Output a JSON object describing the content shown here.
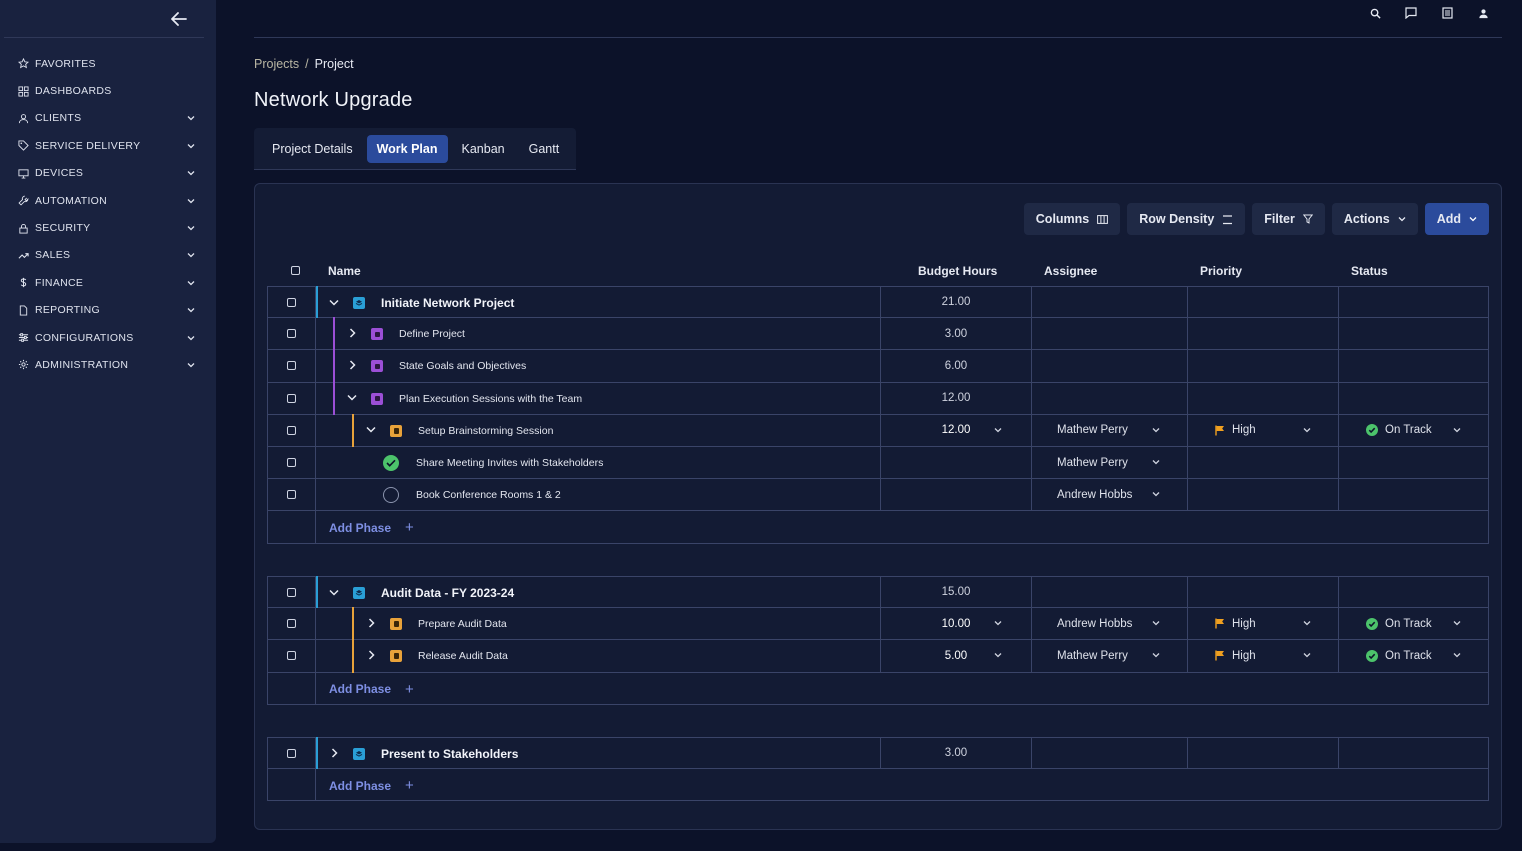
{
  "sidebar": {
    "items": [
      {
        "label": "FAVORITES",
        "icon": "star-icon",
        "chevron": false
      },
      {
        "label": "DASHBOARDS",
        "icon": "dashboard-icon",
        "chevron": false
      },
      {
        "label": "CLIENTS",
        "icon": "user-icon",
        "chevron": true
      },
      {
        "label": "SERVICE DELIVERY",
        "icon": "tag-icon",
        "chevron": true
      },
      {
        "label": "DEVICES",
        "icon": "monitor-icon",
        "chevron": true
      },
      {
        "label": "AUTOMATION",
        "icon": "wrench-icon",
        "chevron": true
      },
      {
        "label": "SECURITY",
        "icon": "lock-icon",
        "chevron": true
      },
      {
        "label": "SALES",
        "icon": "trend-icon",
        "chevron": true
      },
      {
        "label": "FINANCE",
        "icon": "dollar-icon",
        "chevron": true
      },
      {
        "label": "REPORTING",
        "icon": "document-icon",
        "chevron": true
      },
      {
        "label": "CONFIGURATIONS",
        "icon": "sliders-icon",
        "chevron": true
      },
      {
        "label": "ADMINISTRATION",
        "icon": "gear-icon",
        "chevron": true
      }
    ]
  },
  "breadcrumb": {
    "parent": "Projects",
    "separator": "/",
    "current": "Project"
  },
  "page_title": "Network Upgrade",
  "tabs": [
    {
      "label": "Project Details",
      "active": false
    },
    {
      "label": "Work Plan",
      "active": true
    },
    {
      "label": "Kanban",
      "active": false
    },
    {
      "label": "Gantt",
      "active": false
    }
  ],
  "toolbar": {
    "columns": "Columns",
    "row_density": "Row Density",
    "filter": "Filter",
    "actions": "Actions",
    "add": "Add"
  },
  "table": {
    "headers": {
      "name": "Name",
      "budget": "Budget Hours",
      "assignee": "Assignee",
      "priority": "Priority",
      "status": "Status"
    },
    "add_phase": "Add Phase",
    "groups": [
      {
        "name": "Initiate Network Project",
        "budget": "21.00",
        "expanded": true,
        "rows": [
          {
            "name": "Define Project",
            "budget": "3.00",
            "assignee": "",
            "priority": "",
            "status": ""
          },
          {
            "name": "State Goals and Objectives",
            "budget": "6.00",
            "assignee": "",
            "priority": "",
            "status": ""
          },
          {
            "name": "Plan Execution Sessions with the Team",
            "budget": "12.00",
            "assignee": "",
            "priority": "",
            "status": ""
          },
          {
            "name": "Setup Brainstorming Session",
            "budget": "12.00",
            "assignee": "Mathew Perry",
            "priority": "High",
            "status": "On Track"
          },
          {
            "name": "Share Meeting Invites with Stakeholders",
            "budget": "",
            "assignee": "Mathew Perry",
            "priority": "",
            "status": ""
          },
          {
            "name": "Book Conference Rooms 1 & 2",
            "budget": "",
            "assignee": "Andrew Hobbs",
            "priority": "",
            "status": ""
          }
        ]
      },
      {
        "name": "Audit Data - FY 2023-24",
        "budget": "15.00",
        "expanded": true,
        "rows": [
          {
            "name": "Prepare Audit Data",
            "budget": "10.00",
            "assignee": "Andrew Hobbs",
            "priority": "High",
            "status": "On Track"
          },
          {
            "name": "Release Audit Data",
            "budget": "5.00",
            "assignee": "Mathew Perry",
            "priority": "High",
            "status": "On Track"
          }
        ]
      },
      {
        "name": "Present to Stakeholders",
        "budget": "3.00",
        "expanded": false,
        "rows": []
      }
    ]
  },
  "colors": {
    "phase_icon": "#2a9fd6",
    "purple": "#9b4fd6",
    "orange": "#e8a23a",
    "green": "#4cc36b",
    "flag": "#f0a020",
    "accent": "#2b4b9c",
    "link": "#7e8fe3"
  }
}
